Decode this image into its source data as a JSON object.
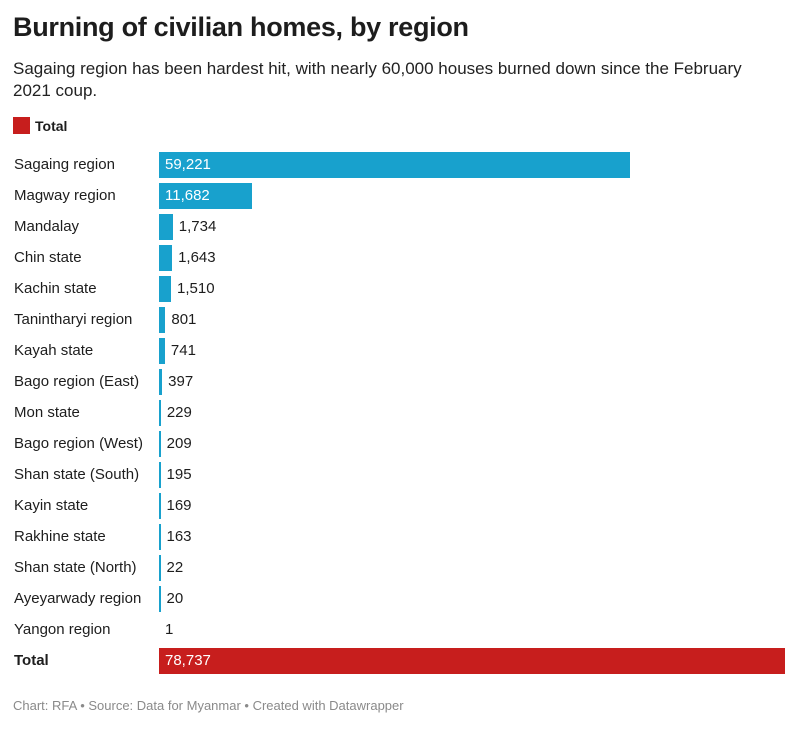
{
  "chart_data": {
    "type": "bar",
    "orientation": "horizontal",
    "title": "Burning of civilian homes, by region",
    "subtitle": "Sagaing region has been hardest hit, with nearly 60,000 houses burned down since the February 2021 coup.",
    "legend": [
      {
        "name": "Total",
        "color": "#c71e1d"
      }
    ],
    "categories": [
      "Sagaing region",
      "Magway region",
      "Mandalay",
      "Chin state",
      "Kachin state",
      "Tanintharyi region",
      "Kayah state",
      "Bago region (East)",
      "Mon state",
      "Bago region (West)",
      "Shan state (South)",
      "Kayin state",
      "Rakhine state",
      "Shan state (North)",
      "Ayeyarwady region",
      "Yangon region",
      "Total"
    ],
    "values": [
      59221,
      11682,
      1734,
      1643,
      1510,
      801,
      741,
      397,
      229,
      209,
      195,
      169,
      163,
      22,
      20,
      1,
      78737
    ],
    "labels": [
      "59,221",
      "11,682",
      "1,734",
      "1,643",
      "1,510",
      "801",
      "741",
      "397",
      "229",
      "209",
      "195",
      "169",
      "163",
      "22",
      "20",
      "1",
      "78,737"
    ],
    "highlight": {
      "Total": "#c71e1d"
    },
    "bar_color": "#18a1cd",
    "xlim": [
      0,
      78737
    ],
    "grid": false
  },
  "footer": "Chart: RFA • Source: Data for Myanmar • Created with Datawrapper"
}
